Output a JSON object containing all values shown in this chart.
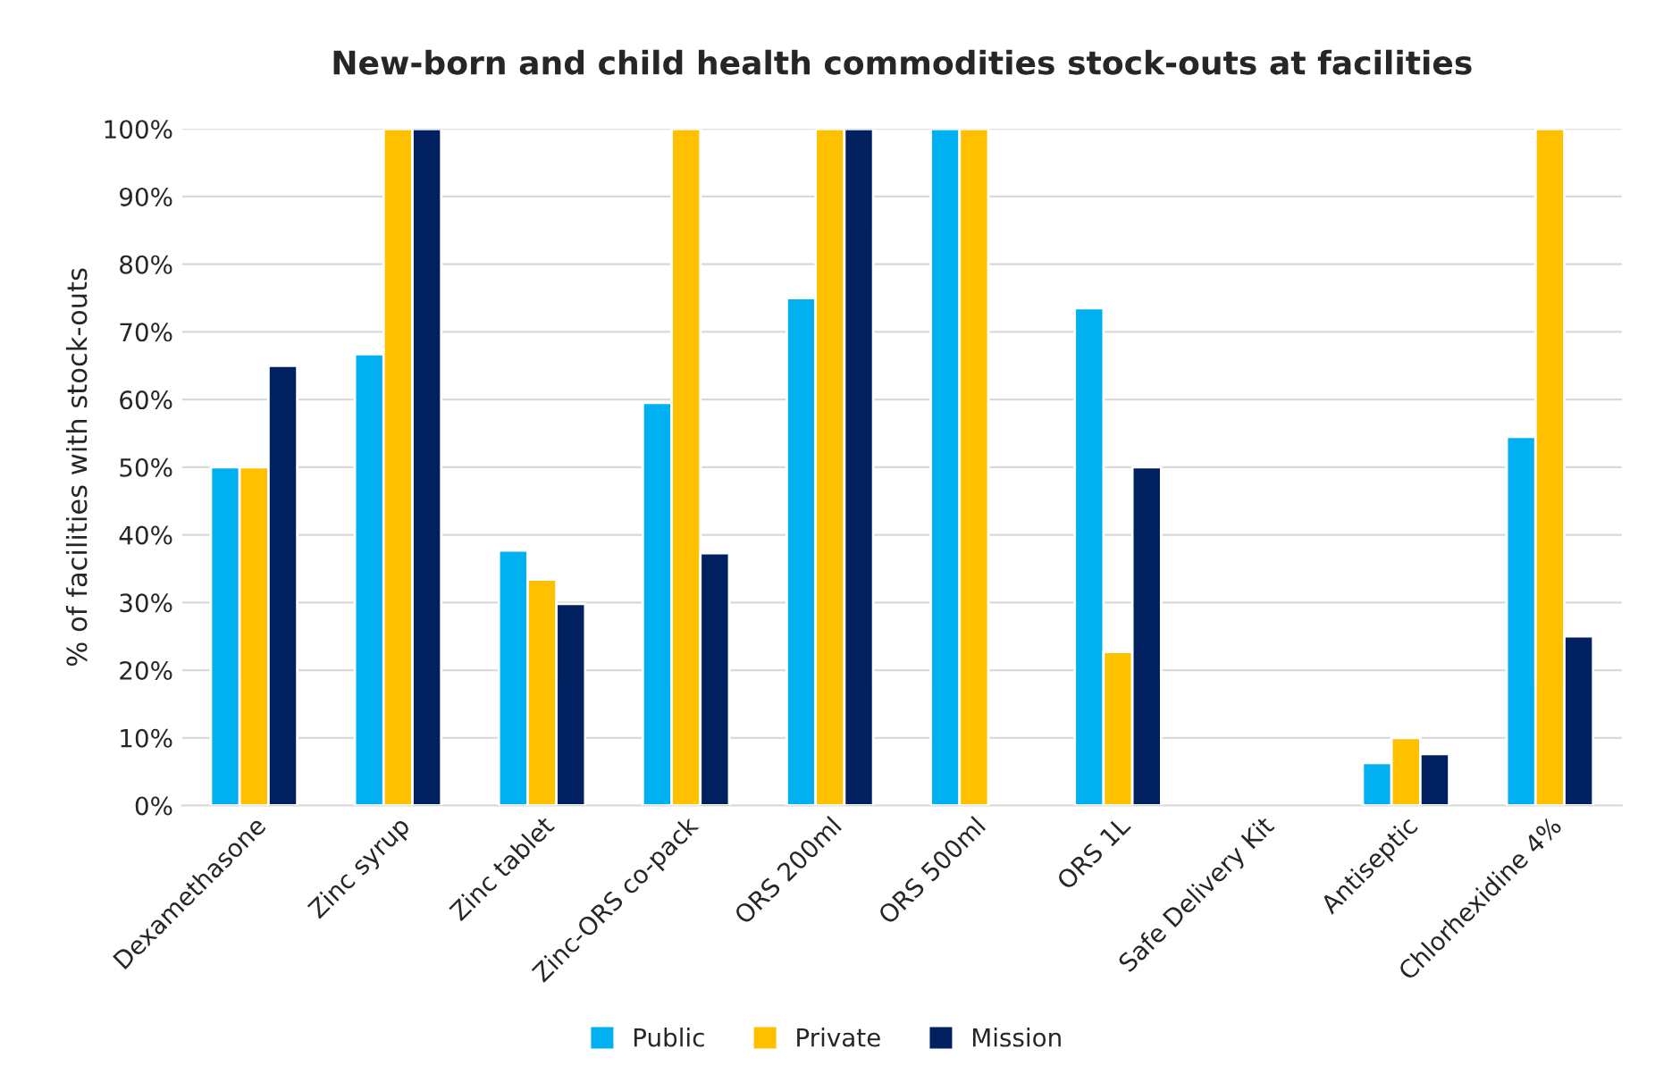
{
  "chart_data": {
    "type": "bar",
    "title": "New-born and child health commodities stock-outs at facilities",
    "ylabel": "% of facilities with stock-outs",
    "categories": [
      "Dexamethasone",
      "Zinc syrup",
      "Zinc tablet",
      "Zinc-ORS co-pack",
      "ORS 200ml",
      "ORS 500ml",
      "ORS 1L",
      "Safe Delivery Kit",
      "Antiseptic",
      "Chlorhexidine 4%"
    ],
    "series": [
      {
        "name": "Public",
        "color": "#00b0f0",
        "values": [
          50,
          66.7,
          37.7,
          59.5,
          75,
          100,
          73.5,
          null,
          6.3,
          54.5
        ]
      },
      {
        "name": "Private",
        "color": "#ffc000",
        "values": [
          50,
          100,
          33.4,
          100,
          100,
          100,
          22.7,
          null,
          10,
          100
        ]
      },
      {
        "name": "Mission",
        "color": "#002060",
        "values": [
          65,
          100,
          29.8,
          37.3,
          100,
          null,
          50,
          null,
          7.6,
          25
        ]
      }
    ],
    "ylim": [
      0,
      100
    ],
    "yticks": [
      {
        "value": 0,
        "label": "0%"
      },
      {
        "value": 10,
        "label": "10%"
      },
      {
        "value": 20,
        "label": "20%"
      },
      {
        "value": 30,
        "label": "30%"
      },
      {
        "value": 40,
        "label": "40%"
      },
      {
        "value": 50,
        "label": "50%"
      },
      {
        "value": 60,
        "label": "60%"
      },
      {
        "value": 70,
        "label": "70%"
      },
      {
        "value": 80,
        "label": "80%"
      },
      {
        "value": 90,
        "label": "90%"
      },
      {
        "value": 100,
        "label": "100%"
      }
    ],
    "grid": "y",
    "legend": "bottom"
  }
}
